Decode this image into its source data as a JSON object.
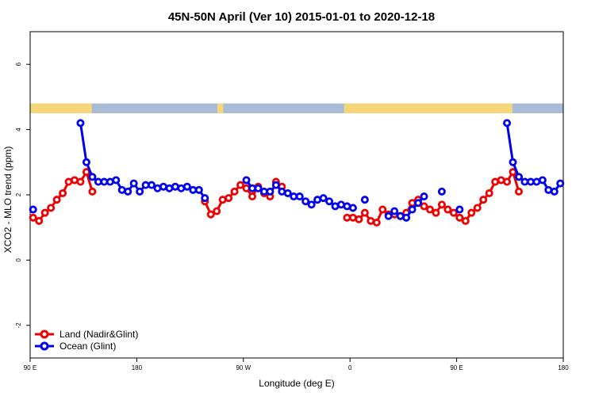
{
  "chart_data": {
    "type": "line",
    "title": "45N-50N April (Ver 10)   2015-01-01 to 2020-12-18",
    "xlabel": "Longitude (deg E)",
    "ylabel": "XCO2 - MLO trend (ppm)",
    "xlim": [
      90,
      540
    ],
    "ylim": [
      -3,
      7
    ],
    "x_ticks": [
      {
        "value": 90,
        "label": "90 E"
      },
      {
        "value": 180,
        "label": "180"
      },
      {
        "value": 270,
        "label": "90 W"
      },
      {
        "value": 360,
        "label": "0"
      },
      {
        "value": 450,
        "label": "90 E"
      },
      {
        "value": 540,
        "label": "180"
      }
    ],
    "y_ticks": [
      {
        "value": -2,
        "label": "-2"
      },
      {
        "value": 0,
        "label": "0"
      },
      {
        "value": 2,
        "label": "2"
      },
      {
        "value": 4,
        "label": "4"
      },
      {
        "value": 6,
        "label": "6"
      }
    ],
    "legend_position": "bottom-left",
    "surface_strip": {
      "y_range": [
        4.5,
        4.8
      ],
      "land_color": "#f5d77a",
      "ocean_color": "#a8bcd8",
      "land_lon_ranges": [
        [
          90,
          142
        ],
        [
          248,
          253
        ],
        [
          355,
          497
        ]
      ]
    },
    "series": [
      {
        "name": "Land (Nadir&Glint)",
        "color": "#ee0000",
        "segments": [
          [
            [
              92.5,
              1.3
            ],
            [
              97.5,
              1.2
            ],
            [
              102.5,
              1.45
            ],
            [
              107.5,
              1.6
            ],
            [
              112.5,
              1.85
            ],
            [
              117.5,
              2.05
            ],
            [
              122.5,
              2.4
            ],
            [
              127.5,
              2.45
            ],
            [
              132.5,
              2.4
            ],
            [
              137.5,
              2.7
            ],
            [
              142.5,
              2.1
            ]
          ],
          [
            [
              237.5,
              1.8
            ],
            [
              242.5,
              1.4
            ],
            [
              247.5,
              1.5
            ],
            [
              252.5,
              1.85
            ],
            [
              257.5,
              1.9
            ],
            [
              262.5,
              2.1
            ],
            [
              267.5,
              2.3
            ],
            [
              272.5,
              2.2
            ],
            [
              277.5,
              1.95
            ],
            [
              282.5,
              2.25
            ],
            [
              287.5,
              2.05
            ],
            [
              292.5,
              1.95
            ],
            [
              297.5,
              2.4
            ],
            [
              302.5,
              2.25
            ]
          ],
          [
            [
              357.5,
              1.3
            ],
            [
              362.5,
              1.3
            ],
            [
              367.5,
              1.25
            ],
            [
              372.5,
              1.45
            ],
            [
              377.5,
              1.2
            ],
            [
              382.5,
              1.15
            ],
            [
              387.5,
              1.55
            ],
            [
              392.5,
              1.4
            ],
            [
              397.5,
              1.4
            ],
            [
              402.5,
              1.35
            ],
            [
              407.5,
              1.45
            ],
            [
              412.5,
              1.75
            ],
            [
              417.5,
              1.85
            ],
            [
              422.5,
              1.65
            ],
            [
              427.5,
              1.55
            ],
            [
              432.5,
              1.45
            ],
            [
              437.5,
              1.7
            ],
            [
              442.5,
              1.55
            ],
            [
              447.5,
              1.45
            ],
            [
              452.5,
              1.3
            ],
            [
              457.5,
              1.2
            ],
            [
              462.5,
              1.45
            ],
            [
              467.5,
              1.6
            ],
            [
              472.5,
              1.85
            ],
            [
              477.5,
              2.05
            ],
            [
              482.5,
              2.4
            ],
            [
              487.5,
              2.45
            ],
            [
              492.5,
              2.4
            ],
            [
              497.5,
              2.7
            ],
            [
              502.5,
              2.1
            ]
          ]
        ]
      },
      {
        "name": "Ocean (Glint)",
        "color": "#0000ee",
        "segments": [
          [
            [
              92.5,
              1.55
            ]
          ],
          [
            [
              132.5,
              4.2
            ],
            [
              137.5,
              3.0
            ],
            [
              142.5,
              2.55
            ],
            [
              147.5,
              2.4
            ],
            [
              152.5,
              2.4
            ],
            [
              157.5,
              2.4
            ],
            [
              162.5,
              2.45
            ],
            [
              167.5,
              2.15
            ],
            [
              172.5,
              2.1
            ],
            [
              177.5,
              2.35
            ],
            [
              182.5,
              2.1
            ],
            [
              187.5,
              2.3
            ],
            [
              192.5,
              2.3
            ],
            [
              197.5,
              2.2
            ],
            [
              202.5,
              2.25
            ],
            [
              207.5,
              2.2
            ],
            [
              212.5,
              2.25
            ],
            [
              217.5,
              2.2
            ],
            [
              222.5,
              2.25
            ],
            [
              227.5,
              2.15
            ],
            [
              232.5,
              2.15
            ],
            [
              237.5,
              1.9
            ]
          ],
          [
            [
              272.5,
              2.45
            ],
            [
              277.5,
              2.2
            ],
            [
              282.5,
              2.2
            ],
            [
              287.5,
              2.1
            ],
            [
              292.5,
              2.1
            ],
            [
              297.5,
              2.3
            ],
            [
              302.5,
              2.1
            ],
            [
              307.5,
              2.05
            ],
            [
              312.5,
              1.95
            ],
            [
              317.5,
              1.95
            ],
            [
              322.5,
              1.8
            ],
            [
              327.5,
              1.7
            ],
            [
              332.5,
              1.85
            ],
            [
              337.5,
              1.9
            ],
            [
              342.5,
              1.8
            ],
            [
              347.5,
              1.65
            ],
            [
              352.5,
              1.7
            ],
            [
              357.5,
              1.65
            ],
            [
              362.5,
              1.6
            ]
          ],
          [
            [
              372.5,
              1.85
            ]
          ],
          [
            [
              392.5,
              1.35
            ],
            [
              397.5,
              1.5
            ],
            [
              402.5,
              1.35
            ],
            [
              407.5,
              1.3
            ],
            [
              412.5,
              1.55
            ],
            [
              417.5,
              1.75
            ],
            [
              422.5,
              1.95
            ]
          ],
          [
            [
              437.5,
              2.1
            ]
          ],
          [
            [
              452.5,
              1.55
            ]
          ],
          [
            [
              492.5,
              4.2
            ],
            [
              497.5,
              3.0
            ],
            [
              502.5,
              2.55
            ],
            [
              507.5,
              2.4
            ],
            [
              512.5,
              2.4
            ],
            [
              517.5,
              2.4
            ],
            [
              522.5,
              2.45
            ],
            [
              527.5,
              2.15
            ],
            [
              532.5,
              2.1
            ],
            [
              537.5,
              2.35
            ]
          ]
        ]
      }
    ]
  }
}
